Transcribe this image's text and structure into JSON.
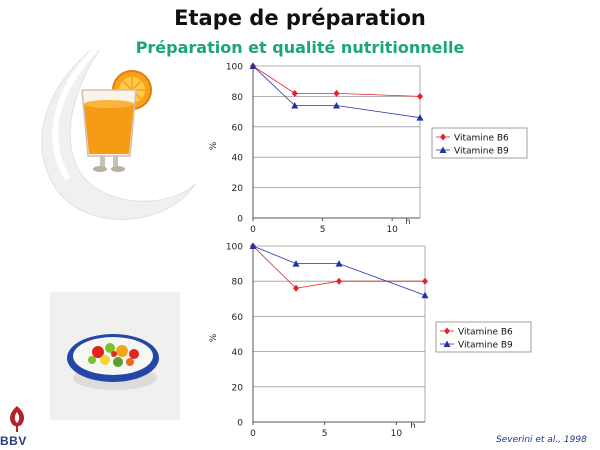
{
  "slide": {
    "title": "Etape de préparation",
    "subtitle": "Préparation et qualité nutritionnelle",
    "citation": "Severini et al., 1998",
    "logo_text": "BBV"
  },
  "colors": {
    "b6": "#e8202a",
    "b9": "#2433a8",
    "subtitle": "#1aa57a",
    "grid": "#9a9a9a"
  },
  "chart_data": [
    {
      "type": "line",
      "x": [
        0,
        3,
        6,
        12
      ],
      "series": [
        {
          "name": "Vitamine B6",
          "values": [
            100,
            82,
            82,
            80
          ],
          "marker": "diamond"
        },
        {
          "name": "Vitamine B9",
          "values": [
            100,
            74,
            74,
            66
          ],
          "marker": "triangle"
        }
      ],
      "ylabel": "%",
      "xlabel": "h",
      "ylim": [
        0,
        100
      ],
      "xlim": [
        0,
        12
      ],
      "yticks": [
        "100",
        "80",
        "60",
        "40",
        "20",
        "0"
      ],
      "xticks": [
        "0",
        "5",
        "10"
      ],
      "grid": true,
      "legend": "right"
    },
    {
      "type": "line",
      "x": [
        0,
        3,
        6,
        12
      ],
      "series": [
        {
          "name": "Vitamine B6",
          "values": [
            100,
            76,
            80,
            80
          ],
          "marker": "diamond"
        },
        {
          "name": "Vitamine B9",
          "values": [
            100,
            90,
            90,
            72
          ],
          "marker": "triangle"
        }
      ],
      "ylabel": "%",
      "xlabel": "h",
      "ylim": [
        0,
        100
      ],
      "xlim": [
        0,
        12
      ],
      "yticks": [
        "100",
        "80",
        "60",
        "40",
        "20",
        "0"
      ],
      "xticks": [
        "0",
        "5",
        "10"
      ],
      "grid": true,
      "legend": "right"
    }
  ]
}
